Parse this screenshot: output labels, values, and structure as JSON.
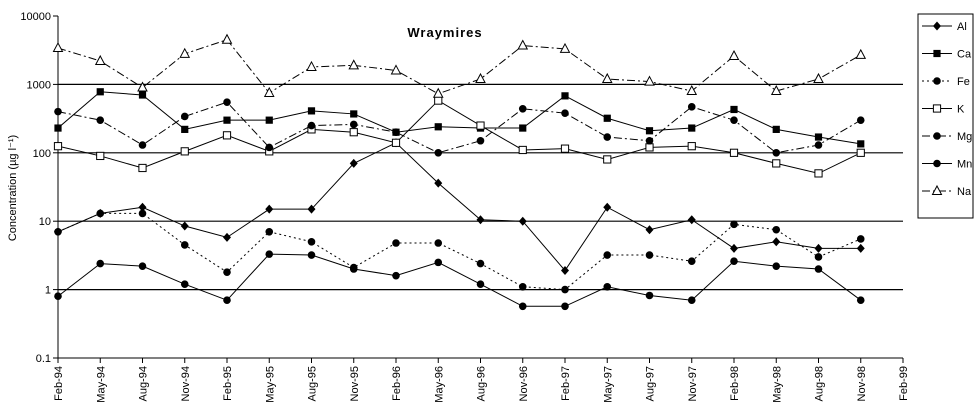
{
  "chart_data": {
    "type": "line",
    "title": "Wraymires",
    "ylabel": "Concentration (µg l⁻¹)",
    "xlabel": "",
    "yscale": "log",
    "ylim": [
      0.1,
      10000
    ],
    "yticks": [
      "0.1",
      "1",
      "10",
      "100",
      "1000",
      "10000"
    ],
    "gridlines": "horizontal at 1, 10, 100, 1000",
    "legend_position": "right",
    "categories": [
      "Feb-94",
      "May-94",
      "Aug-94",
      "Nov-94",
      "Feb-95",
      "May-95",
      "Aug-95",
      "Nov-95",
      "Feb-96",
      "May-96",
      "Aug-96",
      "Nov-96",
      "Feb-97",
      "May-97",
      "Aug-97",
      "Nov-97",
      "Feb-98",
      "May-98",
      "Aug-98",
      "Nov-98",
      "Feb-99"
    ],
    "series": [
      {
        "name": "Al",
        "marker": "diamond",
        "dash": "solid",
        "values": [
          7,
          13,
          16,
          8.5,
          5.8,
          15,
          15,
          70,
          140,
          36,
          10.5,
          10,
          1.9,
          16,
          7.5,
          10.5,
          4,
          5,
          4,
          4,
          null
        ]
      },
      {
        "name": "Ca",
        "marker": "square-filled",
        "dash": "solid",
        "values": [
          230,
          780,
          700,
          220,
          300,
          300,
          410,
          370,
          200,
          240,
          230,
          230,
          680,
          320,
          210,
          230,
          430,
          220,
          170,
          135,
          null
        ]
      },
      {
        "name": "Fe",
        "marker": "circle",
        "dash": "dotted",
        "values": [
          7,
          13,
          13,
          4.5,
          1.8,
          7,
          5,
          2.1,
          4.8,
          4.8,
          2.4,
          1.1,
          1,
          3.2,
          3.2,
          2.6,
          9,
          7.5,
          3,
          5.5,
          null
        ]
      },
      {
        "name": "K",
        "marker": "square-open",
        "dash": "solid",
        "values": [
          125,
          90,
          60,
          105,
          180,
          105,
          220,
          200,
          140,
          580,
          250,
          110,
          115,
          80,
          120,
          125,
          100,
          70,
          50,
          100,
          null
        ]
      },
      {
        "name": "Mg",
        "marker": "circle",
        "dash": "dashdot",
        "values": [
          400,
          300,
          130,
          340,
          550,
          120,
          250,
          260,
          200,
          100,
          150,
          440,
          380,
          170,
          150,
          470,
          300,
          100,
          130,
          300,
          null
        ]
      },
      {
        "name": "Mn",
        "marker": "circle",
        "dash": "solid",
        "values": [
          0.8,
          2.4,
          2.2,
          1.2,
          0.7,
          3.3,
          3.2,
          2.0,
          1.6,
          2.5,
          1.2,
          0.57,
          0.57,
          1.1,
          0.82,
          0.7,
          2.6,
          2.2,
          2.0,
          0.7,
          null
        ]
      },
      {
        "name": "Na",
        "marker": "triangle-open",
        "dash": "dashdot",
        "values": [
          3400,
          2200,
          900,
          2800,
          4500,
          750,
          1800,
          1900,
          1600,
          730,
          1200,
          3700,
          3300,
          1200,
          1100,
          800,
          2600,
          800,
          1200,
          2700,
          null
        ]
      }
    ]
  },
  "legend": {
    "items": [
      {
        "label": "Al"
      },
      {
        "label": "Ca"
      },
      {
        "label": "Fe"
      },
      {
        "label": "K"
      },
      {
        "label": "Mg"
      },
      {
        "label": "Mn"
      },
      {
        "label": "Na"
      }
    ]
  }
}
